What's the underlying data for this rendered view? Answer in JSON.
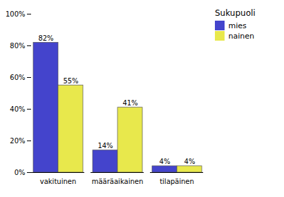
{
  "chart_data": {
    "type": "bar",
    "categories": [
      "vakituinen",
      "määräaikainen",
      "tilapäinen"
    ],
    "series": [
      {
        "name": "mies",
        "color": "#4444cc",
        "values": [
          82,
          14,
          4
        ],
        "value_labels": [
          "82%",
          "14%",
          "4%"
        ]
      },
      {
        "name": "nainen",
        "color": "#e8e84c",
        "values": [
          55,
          41,
          4
        ],
        "value_labels": [
          "55%",
          "41%",
          "4%"
        ]
      }
    ],
    "ylim": [
      0,
      100
    ],
    "yticks": [
      {
        "value": 0,
        "label": "0%"
      },
      {
        "value": 20,
        "label": "20%"
      },
      {
        "value": 40,
        "label": "40%"
      },
      {
        "value": 60,
        "label": "60%"
      },
      {
        "value": 80,
        "label": "80%"
      },
      {
        "value": 100,
        "label": "100%"
      }
    ],
    "grid": false,
    "data_labels": true,
    "legend": "right",
    "legend_title": "Sukupuoli"
  }
}
